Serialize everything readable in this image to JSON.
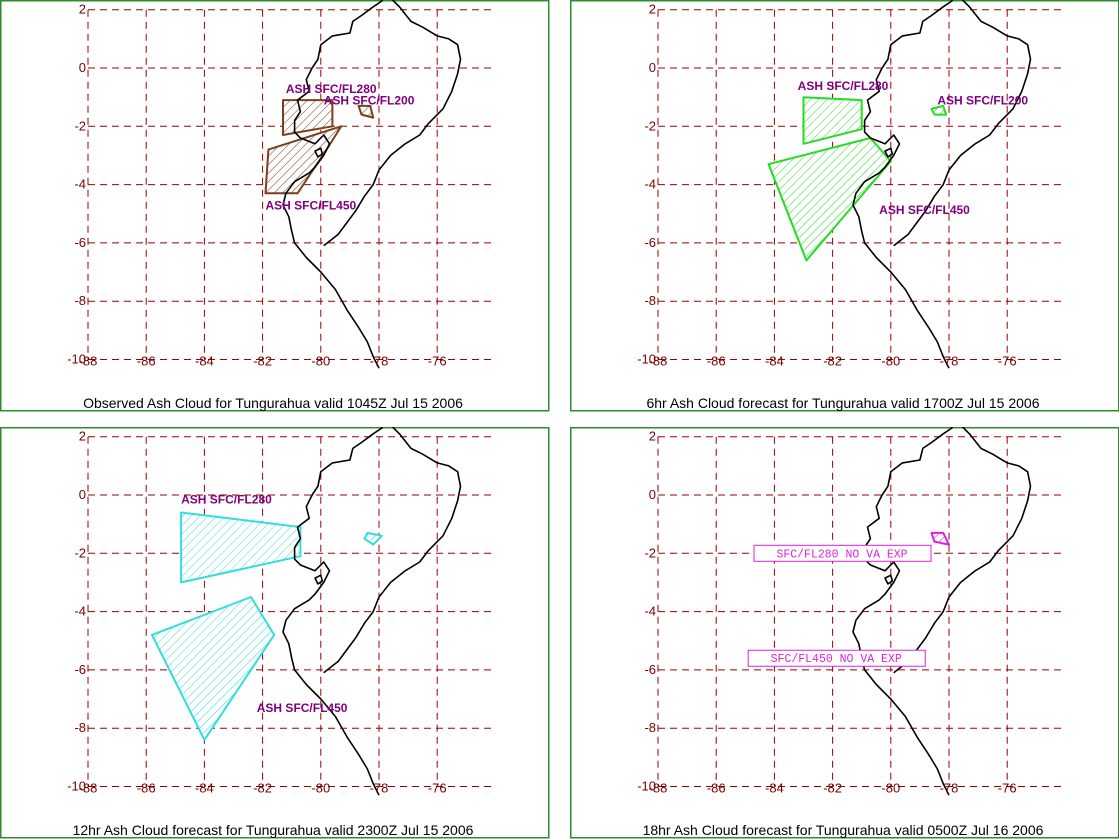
{
  "map_settings": {
    "lon_min": -88,
    "lon_max": -74,
    "lat_min": -10,
    "lat_max": 2,
    "lon_ticks": [
      -88,
      -86,
      -84,
      -82,
      -80,
      -78,
      -76
    ],
    "lat_ticks": [
      2,
      0,
      -2,
      -4,
      -6,
      -8,
      -10
    ],
    "grid_color": "#990000",
    "frame_color": "#2e8b2e",
    "label_color": "#800080",
    "coast_color": "#000000"
  },
  "panels": [
    {
      "caption": "Observed Ash Cloud for Tungurahua valid 1045Z Jul 15 2006",
      "color": "#7b3f1f",
      "plumes": [
        {
          "label": "ASH SFC/FL280",
          "polygon": [
            [
              -81.3,
              -1.1
            ],
            [
              -79.6,
              -1.1
            ],
            [
              -79.6,
              -2.0
            ],
            [
              -81.3,
              -2.3
            ]
          ]
        },
        {
          "label": "ASH SFC/FL450",
          "polygon": [
            [
              -81.8,
              -2.8
            ],
            [
              -79.3,
              -2.0
            ],
            [
              -79.8,
              -2.8
            ],
            [
              -80.8,
              -4.3
            ],
            [
              -81.9,
              -4.3
            ]
          ]
        },
        {
          "label": "ASH SFC/FL200",
          "polygon": [
            [
              -78.7,
              -1.3
            ],
            [
              -78.3,
              -1.3
            ],
            [
              -78.2,
              -1.7
            ],
            [
              -78.6,
              -1.6
            ]
          ]
        }
      ],
      "no_va": []
    },
    {
      "caption": "6hr Ash Cloud forecast for Tungurahua valid 1700Z Jul 15 2006",
      "color": "#22dd22",
      "plumes": [
        {
          "label": "ASH SFC/FL280",
          "polygon": [
            [
              -83.0,
              -1.0
            ],
            [
              -81.0,
              -1.1
            ],
            [
              -81.0,
              -2.1
            ],
            [
              -83.0,
              -2.6
            ]
          ]
        },
        {
          "label": "ASH SFC/FL450",
          "polygon": [
            [
              -84.2,
              -3.3
            ],
            [
              -80.7,
              -2.4
            ],
            [
              -80.0,
              -3.2
            ],
            [
              -82.9,
              -6.6
            ]
          ]
        },
        {
          "label": "ASH SFC/FL200",
          "polygon": [
            [
              -78.6,
              -1.4
            ],
            [
              -78.2,
              -1.3
            ],
            [
              -78.1,
              -1.6
            ],
            [
              -78.5,
              -1.6
            ]
          ]
        }
      ],
      "no_va": []
    },
    {
      "caption": "12hr Ash Cloud forecast for Tungurahua valid 2300Z Jul 15 2006",
      "color": "#33dddd",
      "plumes": [
        {
          "label": "ASH SFC/FL280",
          "polygon": [
            [
              -84.8,
              -0.6
            ],
            [
              -80.7,
              -1.1
            ],
            [
              -80.7,
              -2.1
            ],
            [
              -84.8,
              -3.0
            ]
          ]
        },
        {
          "label": "ASH SFC/FL450",
          "polygon": [
            [
              -85.8,
              -4.8
            ],
            [
              -82.4,
              -3.5
            ],
            [
              -81.6,
              -4.8
            ],
            [
              -84.0,
              -8.4
            ]
          ]
        },
        {
          "label": "",
          "polygon": [
            [
              -78.4,
              -1.3
            ],
            [
              -77.9,
              -1.4
            ],
            [
              -78.2,
              -1.7
            ],
            [
              -78.5,
              -1.5
            ]
          ]
        }
      ],
      "no_va": []
    },
    {
      "caption": "18hr Ash Cloud forecast for Tungurahua valid 0500Z Jul 16 2006",
      "color": "#dd22dd",
      "plumes": [
        {
          "label": "",
          "polygon": [
            [
              -78.6,
              -1.3
            ],
            [
              -78.2,
              -1.3
            ],
            [
              -78.0,
              -1.7
            ],
            [
              -78.5,
              -1.6
            ]
          ]
        }
      ],
      "no_va": [
        {
          "text": "SFC/FL280 NO VA EXP"
        },
        {
          "text": "SFC/FL450 NO VA EXP"
        }
      ]
    }
  ]
}
